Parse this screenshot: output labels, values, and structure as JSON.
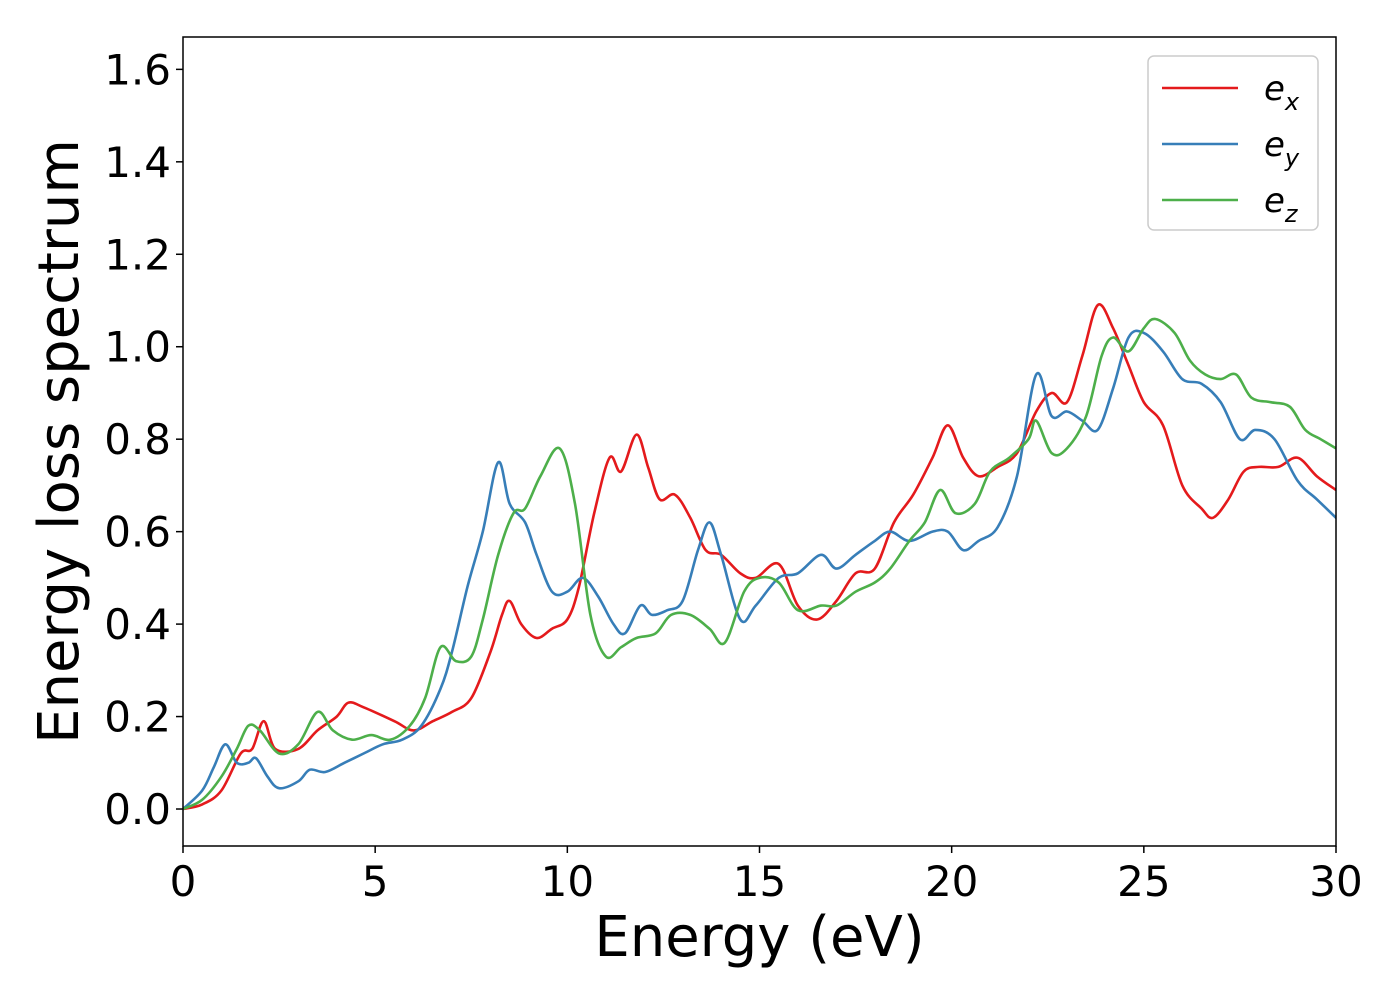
{
  "chart_data": {
    "type": "line",
    "title": "",
    "xlabel": "Energy (eV)",
    "ylabel": "Energy loss spectrum",
    "xlim": [
      0,
      30
    ],
    "ylim": [
      -0.08,
      1.67
    ],
    "xticks": [
      0,
      5,
      10,
      15,
      20,
      25,
      30
    ],
    "xtick_labels": [
      "0",
      "5",
      "10",
      "15",
      "20",
      "25",
      "30"
    ],
    "yticks": [
      0.0,
      0.2,
      0.4,
      0.6,
      0.8,
      1.0,
      1.2,
      1.4,
      1.6
    ],
    "ytick_labels": [
      "0.0",
      "0.2",
      "0.4",
      "0.6",
      "0.8",
      "1.0",
      "1.2",
      "1.4",
      "1.6"
    ],
    "grid": false,
    "legend_position": "top-right",
    "series": [
      {
        "name": "e",
        "subscript": "x",
        "color": "#e41a1c",
        "points": [
          [
            0,
            0
          ],
          [
            0.5,
            0.01
          ],
          [
            1.0,
            0.04
          ],
          [
            1.5,
            0.12
          ],
          [
            1.8,
            0.13
          ],
          [
            2.1,
            0.19
          ],
          [
            2.4,
            0.13
          ],
          [
            3.0,
            0.13
          ],
          [
            3.5,
            0.17
          ],
          [
            4.0,
            0.2
          ],
          [
            4.3,
            0.23
          ],
          [
            4.7,
            0.22
          ],
          [
            5.5,
            0.19
          ],
          [
            6.0,
            0.17
          ],
          [
            6.5,
            0.19
          ],
          [
            7.0,
            0.21
          ],
          [
            7.5,
            0.24
          ],
          [
            8.0,
            0.34
          ],
          [
            8.3,
            0.42
          ],
          [
            8.5,
            0.45
          ],
          [
            8.8,
            0.4
          ],
          [
            9.2,
            0.37
          ],
          [
            9.6,
            0.39
          ],
          [
            10.0,
            0.41
          ],
          [
            10.3,
            0.48
          ],
          [
            10.7,
            0.64
          ],
          [
            11.1,
            0.76
          ],
          [
            11.4,
            0.73
          ],
          [
            11.8,
            0.81
          ],
          [
            12.1,
            0.74
          ],
          [
            12.4,
            0.67
          ],
          [
            12.8,
            0.68
          ],
          [
            13.2,
            0.63
          ],
          [
            13.6,
            0.56
          ],
          [
            14.0,
            0.55
          ],
          [
            14.5,
            0.51
          ],
          [
            14.9,
            0.5
          ],
          [
            15.5,
            0.53
          ],
          [
            16.0,
            0.44
          ],
          [
            16.5,
            0.41
          ],
          [
            17.0,
            0.45
          ],
          [
            17.5,
            0.51
          ],
          [
            18.0,
            0.52
          ],
          [
            18.5,
            0.62
          ],
          [
            19.0,
            0.68
          ],
          [
            19.5,
            0.76
          ],
          [
            19.9,
            0.83
          ],
          [
            20.3,
            0.76
          ],
          [
            20.7,
            0.72
          ],
          [
            21.2,
            0.74
          ],
          [
            21.7,
            0.77
          ],
          [
            22.2,
            0.86
          ],
          [
            22.6,
            0.9
          ],
          [
            23.0,
            0.88
          ],
          [
            23.4,
            0.98
          ],
          [
            23.8,
            1.09
          ],
          [
            24.2,
            1.04
          ],
          [
            24.6,
            0.96
          ],
          [
            25.0,
            0.88
          ],
          [
            25.5,
            0.83
          ],
          [
            26.0,
            0.7
          ],
          [
            26.5,
            0.65
          ],
          [
            26.8,
            0.63
          ],
          [
            27.2,
            0.67
          ],
          [
            27.6,
            0.73
          ],
          [
            28.0,
            0.74
          ],
          [
            28.5,
            0.74
          ],
          [
            29.0,
            0.76
          ],
          [
            29.5,
            0.72
          ],
          [
            30.0,
            0.69
          ]
        ]
      },
      {
        "name": "e",
        "subscript": "y",
        "color": "#377eb8",
        "points": [
          [
            0,
            0
          ],
          [
            0.5,
            0.04
          ],
          [
            0.8,
            0.09
          ],
          [
            1.1,
            0.14
          ],
          [
            1.4,
            0.1
          ],
          [
            1.7,
            0.1
          ],
          [
            1.9,
            0.11
          ],
          [
            2.2,
            0.07
          ],
          [
            2.5,
            0.045
          ],
          [
            3.0,
            0.06
          ],
          [
            3.3,
            0.085
          ],
          [
            3.7,
            0.08
          ],
          [
            4.2,
            0.1
          ],
          [
            4.7,
            0.12
          ],
          [
            5.2,
            0.14
          ],
          [
            5.7,
            0.15
          ],
          [
            6.2,
            0.18
          ],
          [
            6.7,
            0.26
          ],
          [
            7.0,
            0.34
          ],
          [
            7.4,
            0.48
          ],
          [
            7.8,
            0.6
          ],
          [
            8.2,
            0.75
          ],
          [
            8.5,
            0.66
          ],
          [
            8.9,
            0.62
          ],
          [
            9.2,
            0.55
          ],
          [
            9.6,
            0.47
          ],
          [
            10.0,
            0.47
          ],
          [
            10.4,
            0.5
          ],
          [
            10.8,
            0.46
          ],
          [
            11.2,
            0.4
          ],
          [
            11.5,
            0.38
          ],
          [
            11.9,
            0.44
          ],
          [
            12.2,
            0.42
          ],
          [
            12.6,
            0.43
          ],
          [
            13.0,
            0.45
          ],
          [
            13.4,
            0.56
          ],
          [
            13.7,
            0.62
          ],
          [
            14.0,
            0.55
          ],
          [
            14.5,
            0.41
          ],
          [
            14.9,
            0.44
          ],
          [
            15.5,
            0.5
          ],
          [
            16.0,
            0.51
          ],
          [
            16.6,
            0.55
          ],
          [
            17.0,
            0.52
          ],
          [
            17.5,
            0.55
          ],
          [
            18.0,
            0.58
          ],
          [
            18.4,
            0.6
          ],
          [
            18.9,
            0.58
          ],
          [
            19.5,
            0.6
          ],
          [
            19.9,
            0.6
          ],
          [
            20.3,
            0.56
          ],
          [
            20.7,
            0.58
          ],
          [
            21.2,
            0.61
          ],
          [
            21.7,
            0.72
          ],
          [
            22.2,
            0.94
          ],
          [
            22.6,
            0.85
          ],
          [
            23.0,
            0.86
          ],
          [
            23.4,
            0.84
          ],
          [
            23.8,
            0.82
          ],
          [
            24.2,
            0.91
          ],
          [
            24.6,
            1.02
          ],
          [
            25.0,
            1.03
          ],
          [
            25.5,
            0.99
          ],
          [
            26.0,
            0.93
          ],
          [
            26.5,
            0.92
          ],
          [
            27.0,
            0.88
          ],
          [
            27.5,
            0.8
          ],
          [
            27.9,
            0.82
          ],
          [
            28.4,
            0.8
          ],
          [
            29.0,
            0.71
          ],
          [
            29.5,
            0.67
          ],
          [
            30.0,
            0.63
          ]
        ]
      },
      {
        "name": "e",
        "subscript": "z",
        "color": "#4daf4a",
        "points": [
          [
            0,
            0
          ],
          [
            0.5,
            0.02
          ],
          [
            1.0,
            0.07
          ],
          [
            1.4,
            0.13
          ],
          [
            1.7,
            0.18
          ],
          [
            2.0,
            0.17
          ],
          [
            2.5,
            0.12
          ],
          [
            3.0,
            0.14
          ],
          [
            3.5,
            0.21
          ],
          [
            3.9,
            0.17
          ],
          [
            4.4,
            0.15
          ],
          [
            4.9,
            0.16
          ],
          [
            5.4,
            0.15
          ],
          [
            5.9,
            0.18
          ],
          [
            6.3,
            0.24
          ],
          [
            6.7,
            0.35
          ],
          [
            7.1,
            0.32
          ],
          [
            7.5,
            0.33
          ],
          [
            7.8,
            0.41
          ],
          [
            8.2,
            0.55
          ],
          [
            8.6,
            0.64
          ],
          [
            8.9,
            0.65
          ],
          [
            9.3,
            0.72
          ],
          [
            9.8,
            0.78
          ],
          [
            10.2,
            0.66
          ],
          [
            10.6,
            0.42
          ],
          [
            11.0,
            0.33
          ],
          [
            11.4,
            0.35
          ],
          [
            11.8,
            0.37
          ],
          [
            12.3,
            0.38
          ],
          [
            12.7,
            0.42
          ],
          [
            13.2,
            0.42
          ],
          [
            13.7,
            0.39
          ],
          [
            14.1,
            0.36
          ],
          [
            14.6,
            0.47
          ],
          [
            15.0,
            0.5
          ],
          [
            15.5,
            0.49
          ],
          [
            16.0,
            0.43
          ],
          [
            16.6,
            0.44
          ],
          [
            17.0,
            0.44
          ],
          [
            17.5,
            0.47
          ],
          [
            18.0,
            0.49
          ],
          [
            18.4,
            0.52
          ],
          [
            18.9,
            0.58
          ],
          [
            19.3,
            0.62
          ],
          [
            19.7,
            0.69
          ],
          [
            20.1,
            0.64
          ],
          [
            20.6,
            0.66
          ],
          [
            21.0,
            0.73
          ],
          [
            21.5,
            0.76
          ],
          [
            22.0,
            0.8
          ],
          [
            22.2,
            0.84
          ],
          [
            22.6,
            0.77
          ],
          [
            23.0,
            0.78
          ],
          [
            23.5,
            0.85
          ],
          [
            23.9,
            0.98
          ],
          [
            24.2,
            1.02
          ],
          [
            24.6,
            0.99
          ],
          [
            25.0,
            1.04
          ],
          [
            25.3,
            1.06
          ],
          [
            25.8,
            1.03
          ],
          [
            26.2,
            0.97
          ],
          [
            26.6,
            0.94
          ],
          [
            27.0,
            0.93
          ],
          [
            27.4,
            0.94
          ],
          [
            27.8,
            0.89
          ],
          [
            28.3,
            0.88
          ],
          [
            28.8,
            0.87
          ],
          [
            29.2,
            0.82
          ],
          [
            29.6,
            0.8
          ],
          [
            30.0,
            0.78
          ]
        ]
      }
    ]
  }
}
